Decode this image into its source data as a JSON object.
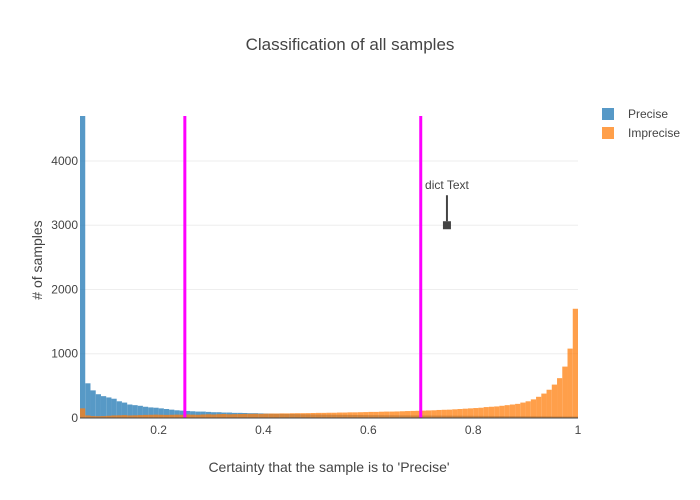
{
  "chart_data": {
    "type": "bar",
    "title": "Classification of all samples",
    "xlabel": "Certainty that the sample is to 'Precise'",
    "ylabel": "# of samples",
    "xlim": [
      0.05,
      1.0
    ],
    "ylim": [
      0,
      4700
    ],
    "x_ticks": [
      0.2,
      0.4,
      0.6,
      0.8,
      1
    ],
    "x_tick_labels": [
      "0.2",
      "0.4",
      "0.6",
      "0.8",
      "1"
    ],
    "y_ticks": [
      0,
      1000,
      2000,
      3000,
      4000
    ],
    "y_tick_labels": [
      "0",
      "1000",
      "2000",
      "3000",
      "4000"
    ],
    "grid": true,
    "legend_position": "top-right",
    "bin_start": 0.05,
    "bin_width": 0.01,
    "series": [
      {
        "name": "Precise",
        "color": "#1f77b4",
        "values": [
          4700,
          540,
          430,
          370,
          340,
          320,
          300,
          260,
          240,
          210,
          200,
          190,
          175,
          165,
          160,
          150,
          140,
          130,
          120,
          115,
          110,
          105,
          100,
          100,
          95,
          90,
          90,
          85,
          85,
          80,
          80,
          78,
          75,
          75,
          72,
          70,
          68,
          66,
          65,
          63,
          62,
          60,
          58,
          57,
          55,
          54,
          53,
          52,
          51,
          50,
          49,
          48,
          47,
          46,
          45,
          44,
          44,
          43,
          42,
          42,
          41,
          40,
          40,
          39,
          39,
          38,
          38,
          37,
          37,
          36,
          36,
          35,
          35,
          34,
          34,
          33,
          33,
          32,
          32,
          31,
          31,
          30,
          30,
          29,
          29,
          28,
          28,
          27,
          27,
          26,
          25,
          25,
          24,
          24,
          23
        ]
      },
      {
        "name": "Imprecise",
        "color": "#ff7f0e",
        "values": [
          150,
          40,
          30,
          28,
          30,
          35,
          40,
          42,
          45,
          40,
          42,
          45,
          48,
          50,
          52,
          50,
          48,
          50,
          52,
          50,
          55,
          52,
          50,
          55,
          58,
          55,
          60,
          62,
          58,
          60,
          62,
          64,
          65,
          66,
          65,
          68,
          70,
          70,
          72,
          72,
          74,
          75,
          75,
          76,
          78,
          80,
          80,
          82,
          82,
          85,
          85,
          88,
          88,
          90,
          92,
          95,
          95,
          98,
          100,
          100,
          102,
          105,
          108,
          110,
          112,
          115,
          118,
          120,
          125,
          128,
          130,
          135,
          140,
          145,
          150,
          155,
          160,
          170,
          175,
          180,
          190,
          200,
          210,
          220,
          240,
          260,
          290,
          330,
          380,
          440,
          520,
          620,
          800,
          1080,
          1700
        ]
      }
    ],
    "vertical_lines": [
      {
        "x": 0.25,
        "color": "#ff00ff"
      },
      {
        "x": 0.7,
        "color": "#ff00ff"
      }
    ],
    "annotation": {
      "text": "dict Text",
      "x": 0.75,
      "y": 3000
    }
  }
}
